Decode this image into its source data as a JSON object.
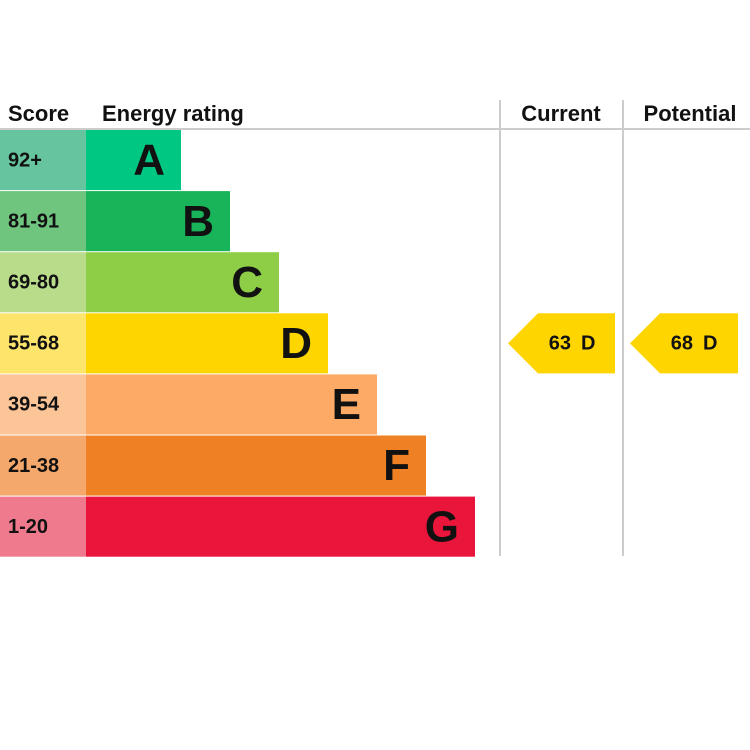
{
  "header": {
    "score": "Score",
    "rating": "Energy rating",
    "current": "Current",
    "potential": "Potential"
  },
  "rows": [
    {
      "score": "92+",
      "band": "A"
    },
    {
      "score": "81-91",
      "band": "B"
    },
    {
      "score": "69-80",
      "band": "C"
    },
    {
      "score": "55-68",
      "band": "D"
    },
    {
      "score": "39-54",
      "band": "E"
    },
    {
      "score": "21-38",
      "band": "F"
    },
    {
      "score": "1-20",
      "band": "G"
    }
  ],
  "current": {
    "score": "63",
    "band": "D"
  },
  "potential": {
    "score": "68",
    "band": "D"
  }
}
